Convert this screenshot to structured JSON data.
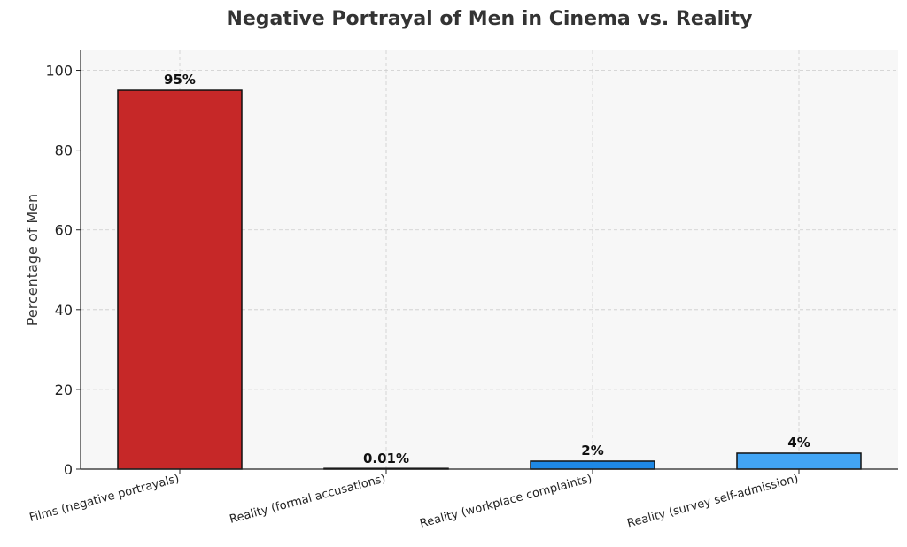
{
  "chart_data": {
    "type": "bar",
    "title": "Negative Portrayal of Men in Cinema vs. Reality",
    "xlabel": "",
    "ylabel": "Percentage of Men",
    "categories": [
      "Films (negative portrayals)",
      "Reality (formal accusations)",
      "Reality (workplace complaints)",
      "Reality (survey self-admission)"
    ],
    "values": [
      95,
      0.01,
      2,
      4
    ],
    "value_labels": [
      "95%",
      "0.01%",
      "2%",
      "4%"
    ],
    "bar_colors": [
      "#c62828",
      "#1e88e5",
      "#1e88e5",
      "#42a5f5"
    ],
    "ylim": [
      0,
      105
    ],
    "yticks": [
      0,
      20,
      40,
      60,
      80,
      100
    ],
    "grid": true,
    "legend": "none",
    "background_color": "#f7f7f7"
  }
}
